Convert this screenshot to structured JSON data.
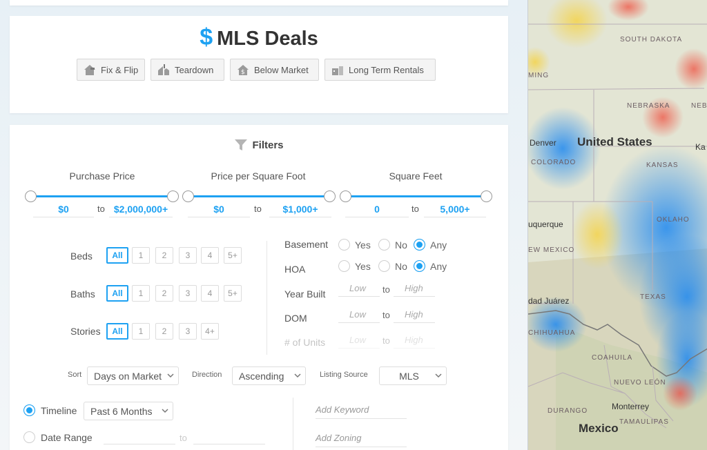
{
  "deals": {
    "dollar": "$",
    "title": "MLS Deals",
    "buttons": [
      {
        "label": "Fix & Flip",
        "icon": "house-hammer-icon"
      },
      {
        "label": "Teardown",
        "icon": "house-demolish-icon"
      },
      {
        "label": "Below Market",
        "icon": "house-dollar-icon"
      },
      {
        "label": "Long Term Rentals",
        "icon": "house-rental-icon"
      }
    ]
  },
  "filters": {
    "heading": "Filters",
    "ranges": [
      {
        "title": "Purchase Price",
        "min": "$0",
        "to": "to",
        "max": "$2,000,000+"
      },
      {
        "title": "Price per Square Foot",
        "min": "$0",
        "to": "to",
        "max": "$1,000+"
      },
      {
        "title": "Square Feet",
        "min": "0",
        "to": "to",
        "max": "5,000+"
      }
    ],
    "beds": {
      "label": "Beds",
      "options": [
        "All",
        "1",
        "2",
        "3",
        "4",
        "5+"
      ]
    },
    "baths": {
      "label": "Baths",
      "options": [
        "All",
        "1",
        "2",
        "3",
        "4",
        "5+"
      ]
    },
    "stories": {
      "label": "Stories",
      "options": [
        "All",
        "1",
        "2",
        "3",
        "4+"
      ]
    },
    "basement": {
      "label": "Basement",
      "yes": "Yes",
      "no": "No",
      "any": "Any",
      "selected": "Any"
    },
    "hoa": {
      "label": "HOA",
      "yes": "Yes",
      "no": "No",
      "any": "Any",
      "selected": "Any"
    },
    "year_built": {
      "label": "Year Built",
      "low": "Low",
      "to": "to",
      "high": "High"
    },
    "dom": {
      "label": "DOM",
      "low": "Low",
      "to": "to",
      "high": "High"
    },
    "units": {
      "label": "# of Units",
      "low": "Low",
      "to": "to",
      "high": "High"
    },
    "sort": {
      "label": "Sort",
      "value": "Days on Market"
    },
    "direction": {
      "label": "Direction",
      "value": "Ascending"
    },
    "listing_source": {
      "label": "Listing Source",
      "value": "MLS"
    },
    "timeline": {
      "label": "Timeline",
      "value": "Past 6 Months"
    },
    "date_range": {
      "label": "Date Range",
      "to": "to"
    },
    "keyword_placeholder": "Add Keyword",
    "zoning_placeholder": "Add Zoning"
  },
  "map": {
    "labels": {
      "south_dakota": "SOUTH DAKOTA",
      "nebraska": "NEBRASKA",
      "nebraska_abbr": "NEB",
      "united_states": "United States",
      "kansas": "KANSAS",
      "denver": "Denver",
      "colorado": "COLORADO",
      "albuquerque": "uquerque",
      "new_mexico": "EW MEXICO",
      "oklahoma": "OKLAHO",
      "ciudad_juarez": "dad Juárez",
      "chihuahua": "CHIHUAHUA",
      "coahuila": "COAHUILA",
      "nuevo_leon": "NUEVO LEÓN",
      "durango": "DURANGO",
      "monterrey": "Monterrey",
      "tamaulipas": "TAMAULIPAS",
      "mexico": "Mexico",
      "texas": "TEXAS",
      "ka": "Ka",
      "ming": "MING"
    },
    "accent": "#1da1f2"
  }
}
